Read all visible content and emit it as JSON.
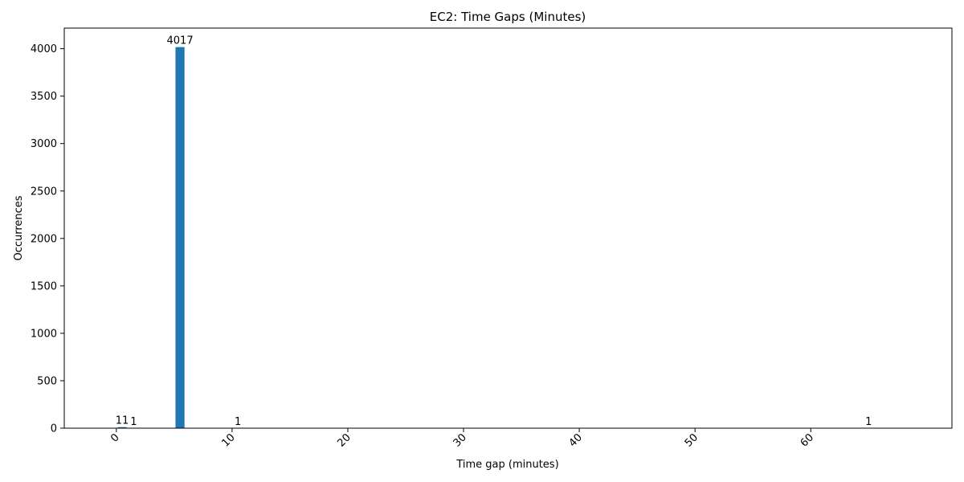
{
  "chart_data": {
    "type": "bar",
    "title": "EC2: Time Gaps (Minutes)",
    "xlabel": "Time gap (minutes)",
    "ylabel": "Occurrences",
    "xlim": [
      -4.5,
      72.2
    ],
    "ylim": [
      0,
      4217
    ],
    "xticks": [
      0,
      10,
      20,
      30,
      40,
      50,
      60
    ],
    "yticks": [
      0,
      500,
      1000,
      1500,
      2000,
      2500,
      3000,
      3500,
      4000
    ],
    "bar_color": "#1f77b4",
    "grid": false,
    "legend": "none",
    "bars": [
      {
        "x": 0.5,
        "value": 11,
        "label": "11"
      },
      {
        "x": 1.5,
        "value": 1,
        "label": "1"
      },
      {
        "x": 5.5,
        "value": 4017,
        "label": "4017"
      },
      {
        "x": 10.5,
        "value": 1,
        "label": "1"
      },
      {
        "x": 65.0,
        "value": 1,
        "label": "1"
      }
    ]
  }
}
